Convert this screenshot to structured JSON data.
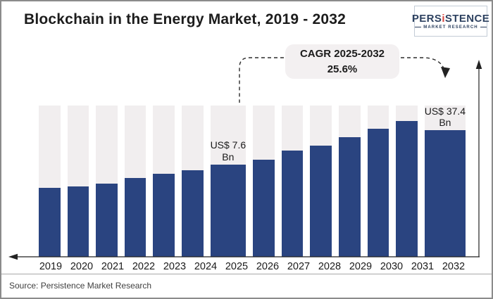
{
  "header": {
    "title": "Blockchain in the Energy Market, 2019 - 2032",
    "logo": {
      "part1": "PERS",
      "accent": "i",
      "part2": "STENCE",
      "tagline": "MARKET RESEARCH"
    }
  },
  "cagr_callout": {
    "line1": "CAGR 2025-2032",
    "line2": "25.6%"
  },
  "value_labels": {
    "y2025": "US$ 7.6\nBn",
    "y2032": "US$ 37.4\nBn"
  },
  "footer": {
    "source": "Source: Persistence Market Research"
  },
  "colors": {
    "bar": "#2a4480",
    "track": "#f1eeef",
    "callout_bg": "#f3f0f1",
    "logo_navy": "#2d4160",
    "logo_red": "#d9453e"
  },
  "chart_data": {
    "type": "bar",
    "title": "Blockchain in the Energy Market, 2019 - 2032",
    "unit": "US$ Bn",
    "categories": [
      "2019",
      "2020",
      "2021",
      "2022",
      "2023",
      "2024",
      "2025",
      "2026",
      "2027",
      "2028",
      "2029",
      "2030",
      "2031",
      "2032"
    ],
    "bar_heights_pct": [
      45.8,
      46.3,
      48.6,
      51.9,
      55.1,
      57.4,
      61.1,
      64.4,
      70.4,
      73.6,
      79.2,
      84.7,
      89.8,
      94.4
    ],
    "values_labeled_bn": {
      "2025": 7.6,
      "2032": 37.4
    },
    "data_labels": {
      "2025": "US$ 7.6 Bn",
      "2032": "US$ 37.4 Bn"
    },
    "annotation": "CAGR 2025-2032: 25.6%",
    "xlabel": "",
    "ylabel": "",
    "grid": false,
    "legend": false,
    "axis_style": "arrow-tipped x and y axes, no ticks or value labels; full-height light tracks behind bars"
  }
}
